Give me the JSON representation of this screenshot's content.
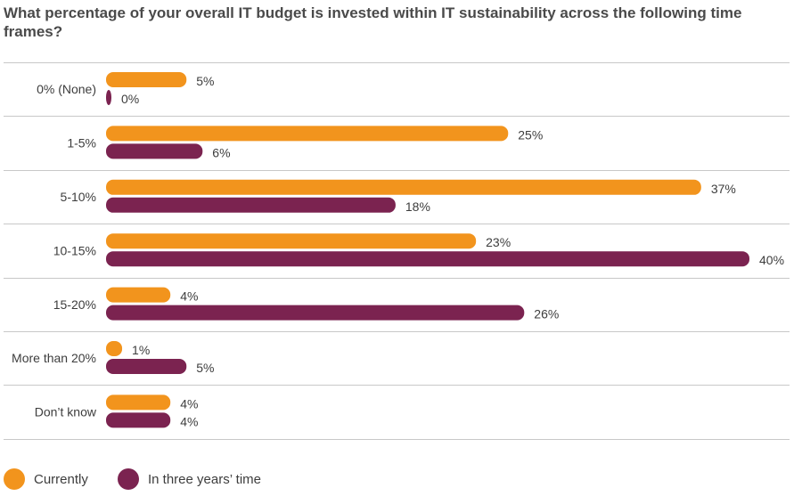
{
  "chart_data": {
    "type": "bar",
    "orientation": "horizontal",
    "title": "What percentage of your overall IT budget is invested within IT sustainability across the following time frames?",
    "categories": [
      "0% (None)",
      "1-5%",
      "5-10%",
      "10-15%",
      "15-20%",
      "More than 20%",
      "Don’t know"
    ],
    "series": [
      {
        "name": "Currently",
        "color": "#f2941d",
        "values": [
          5,
          25,
          37,
          23,
          4,
          1,
          4
        ]
      },
      {
        "name": "In three years’ time",
        "color": "#7b2350",
        "values": [
          0,
          6,
          18,
          40,
          26,
          5,
          4
        ]
      }
    ],
    "value_suffix": "%",
    "xlim": [
      0,
      40
    ],
    "legend_position": "bottom-left",
    "grid": false
  }
}
